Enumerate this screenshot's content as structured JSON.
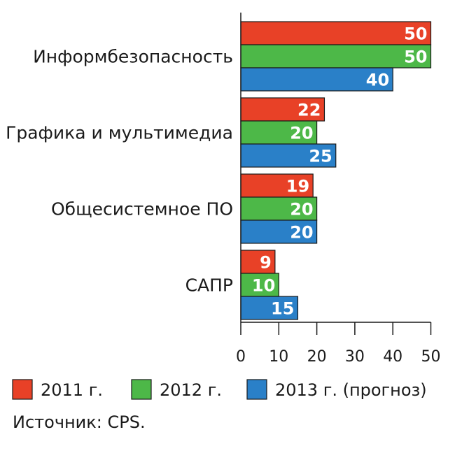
{
  "chart_data": {
    "type": "bar",
    "orientation": "horizontal",
    "categories": [
      "Информбезопасность",
      "Графика и мультимедиа",
      "Общесистемное ПО",
      "САПР"
    ],
    "series": [
      {
        "name": "2011 г.",
        "color": "#e84127",
        "values": [
          50,
          22,
          19,
          9
        ]
      },
      {
        "name": "2012 г.",
        "color": "#4db848",
        "values": [
          50,
          20,
          20,
          10
        ]
      },
      {
        "name": "2013 г. (прогноз)",
        "color": "#2a80c8",
        "values": [
          40,
          25,
          20,
          15
        ]
      }
    ],
    "xlim": [
      0,
      50
    ],
    "xticks": [
      "0",
      "10",
      "20",
      "30",
      "40",
      "50"
    ],
    "legend_position": "bottom",
    "grid": false,
    "source": "Источник: CPS."
  }
}
